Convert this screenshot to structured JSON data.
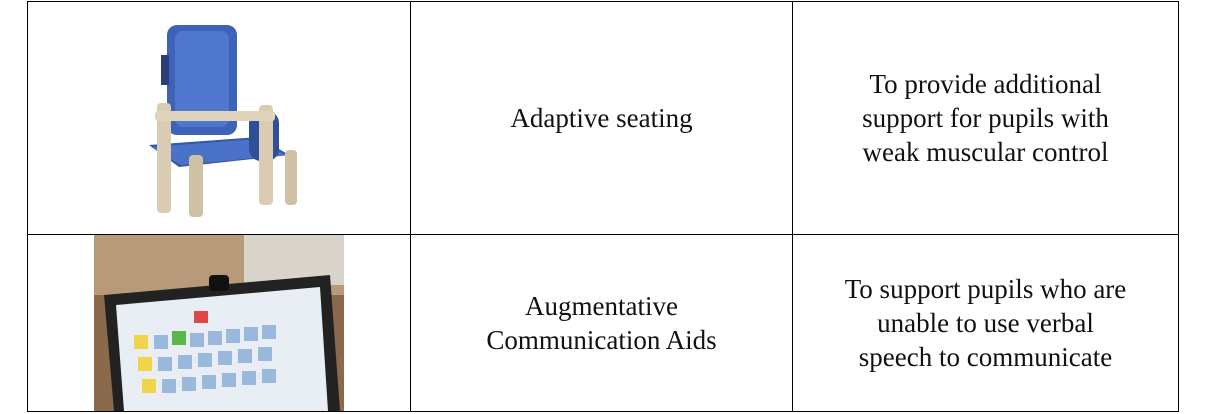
{
  "table": {
    "rows": [
      {
        "item": [
          "Adaptive seating"
        ],
        "purpose": [
          "To provide additional",
          "support for pupils with",
          "weak muscular control"
        ]
      },
      {
        "item": [
          "Augmentative",
          "Communication Aids"
        ],
        "purpose": [
          "To support pupils who are",
          "unable to use verbal",
          "speech to communicate"
        ]
      }
    ]
  }
}
